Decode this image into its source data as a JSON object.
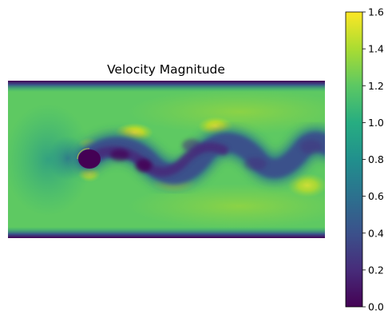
{
  "chart_data": {
    "type": "heatmap",
    "title": "Velocity Magnitude",
    "xlabel": "",
    "ylabel": "",
    "axes": "off",
    "colormap": "viridis",
    "colormap_stops": [
      "#440154",
      "#472c7a",
      "#3b518b",
      "#2c718e",
      "#21908d",
      "#27ad81",
      "#5cc863",
      "#aadc32",
      "#fde725"
    ],
    "clim": [
      0,
      1.6
    ],
    "colorbar": {
      "orientation": "vertical",
      "location": "right",
      "ticks": [
        0.0,
        0.2,
        0.4,
        0.6,
        0.8,
        1.0,
        1.2,
        1.4,
        1.6
      ],
      "tick_labels": [
        "0.0",
        "0.2",
        "0.4",
        "0.6",
        "0.8",
        "1.0",
        "1.2",
        "1.4",
        "1.6"
      ]
    },
    "field_description": {
      "free_stream_value": 1.1,
      "wall_value": 0.0,
      "obstacle": "cylinder near left inlet",
      "wake": "oscillating vortex street trailing to the right",
      "peak_value": 1.55
    }
  }
}
